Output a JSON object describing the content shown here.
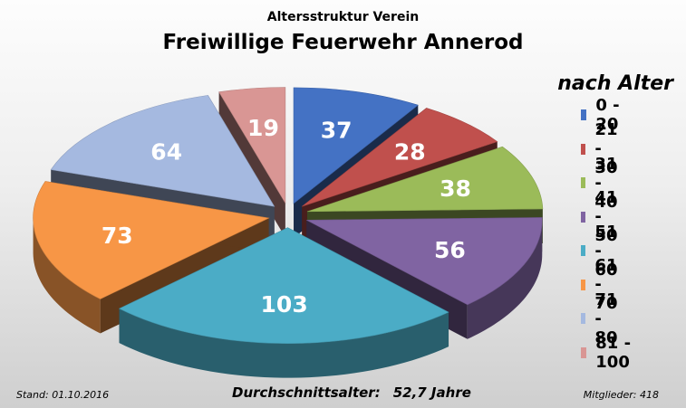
{
  "header": {
    "subtitle": "Altersstruktur Verein",
    "title": "Freiwillige Feuerwehr Annerod"
  },
  "legend": {
    "title": "nach Alter"
  },
  "footer": {
    "stand": "Stand: 01.10.2016",
    "average_label": "Durchschnittsalter:",
    "average_value": "52,7 Jahre",
    "members": "Mitglieder: 418"
  },
  "chart_data": {
    "type": "pie",
    "style": "3d-exploded",
    "title": "Freiwillige Feuerwehr Annerod",
    "subtitle": "Altersstruktur Verein",
    "legend_title": "nach Alter",
    "legend_position": "right",
    "categories": [
      "0 - 20",
      "21 - 30",
      "31 - 40",
      "41 - 50",
      "51 - 60",
      "61 - 70",
      "71 - 80",
      "81 - 100"
    ],
    "values": [
      37,
      28,
      38,
      56,
      103,
      73,
      64,
      19
    ],
    "colors": [
      "#4472c4",
      "#c0504d",
      "#9bbb59",
      "#8064a2",
      "#4bacc6",
      "#f79646",
      "#a5b9e0",
      "#d99694"
    ]
  }
}
